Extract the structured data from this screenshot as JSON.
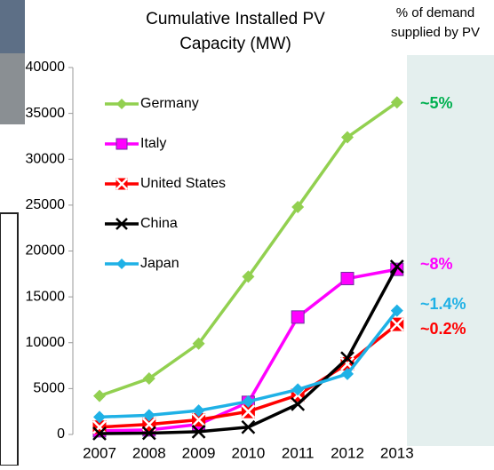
{
  "chart_data": {
    "type": "line",
    "title": "Cumulative Installed PV Capacity (MW)",
    "side_title": "% of demand supplied by PV",
    "categories": [
      "2007",
      "2008",
      "2009",
      "2010",
      "2011",
      "2012",
      "2013"
    ],
    "series": [
      {
        "name": "Germany",
        "color": "#92d050",
        "marker": "diamond",
        "values": [
          4200,
          6100,
          9900,
          17200,
          24800,
          32400,
          36200
        ]
      },
      {
        "name": "Italy",
        "color": "#ff00ff",
        "marker": "square",
        "values": [
          400,
          500,
          1100,
          3500,
          12800,
          17000,
          18000
        ]
      },
      {
        "name": "United States",
        "color": "#ff0000",
        "marker": "squarex",
        "values": [
          800,
          1100,
          1600,
          2500,
          4300,
          7700,
          12000
        ]
      },
      {
        "name": "China",
        "color": "#000000",
        "marker": "x",
        "values": [
          100,
          150,
          300,
          800,
          3300,
          8300,
          18300
        ]
      },
      {
        "name": "Japan",
        "color": "#1fb1e6",
        "marker": "diamond",
        "values": [
          1900,
          2100,
          2600,
          3600,
          4900,
          6600,
          13500
        ]
      }
    ],
    "annotations": [
      {
        "text": "~5%",
        "color": "#00b050"
      },
      {
        "text": "~8%",
        "color": "#ff00ff"
      },
      {
        "text": "~1.4%",
        "color": "#1fb1e6"
      },
      {
        "text": "~0.2%",
        "color": "#ff0000"
      }
    ],
    "ylim": [
      0,
      40000
    ],
    "yticks": [
      0,
      5000,
      10000,
      15000,
      20000,
      25000,
      30000,
      35000,
      40000
    ]
  }
}
